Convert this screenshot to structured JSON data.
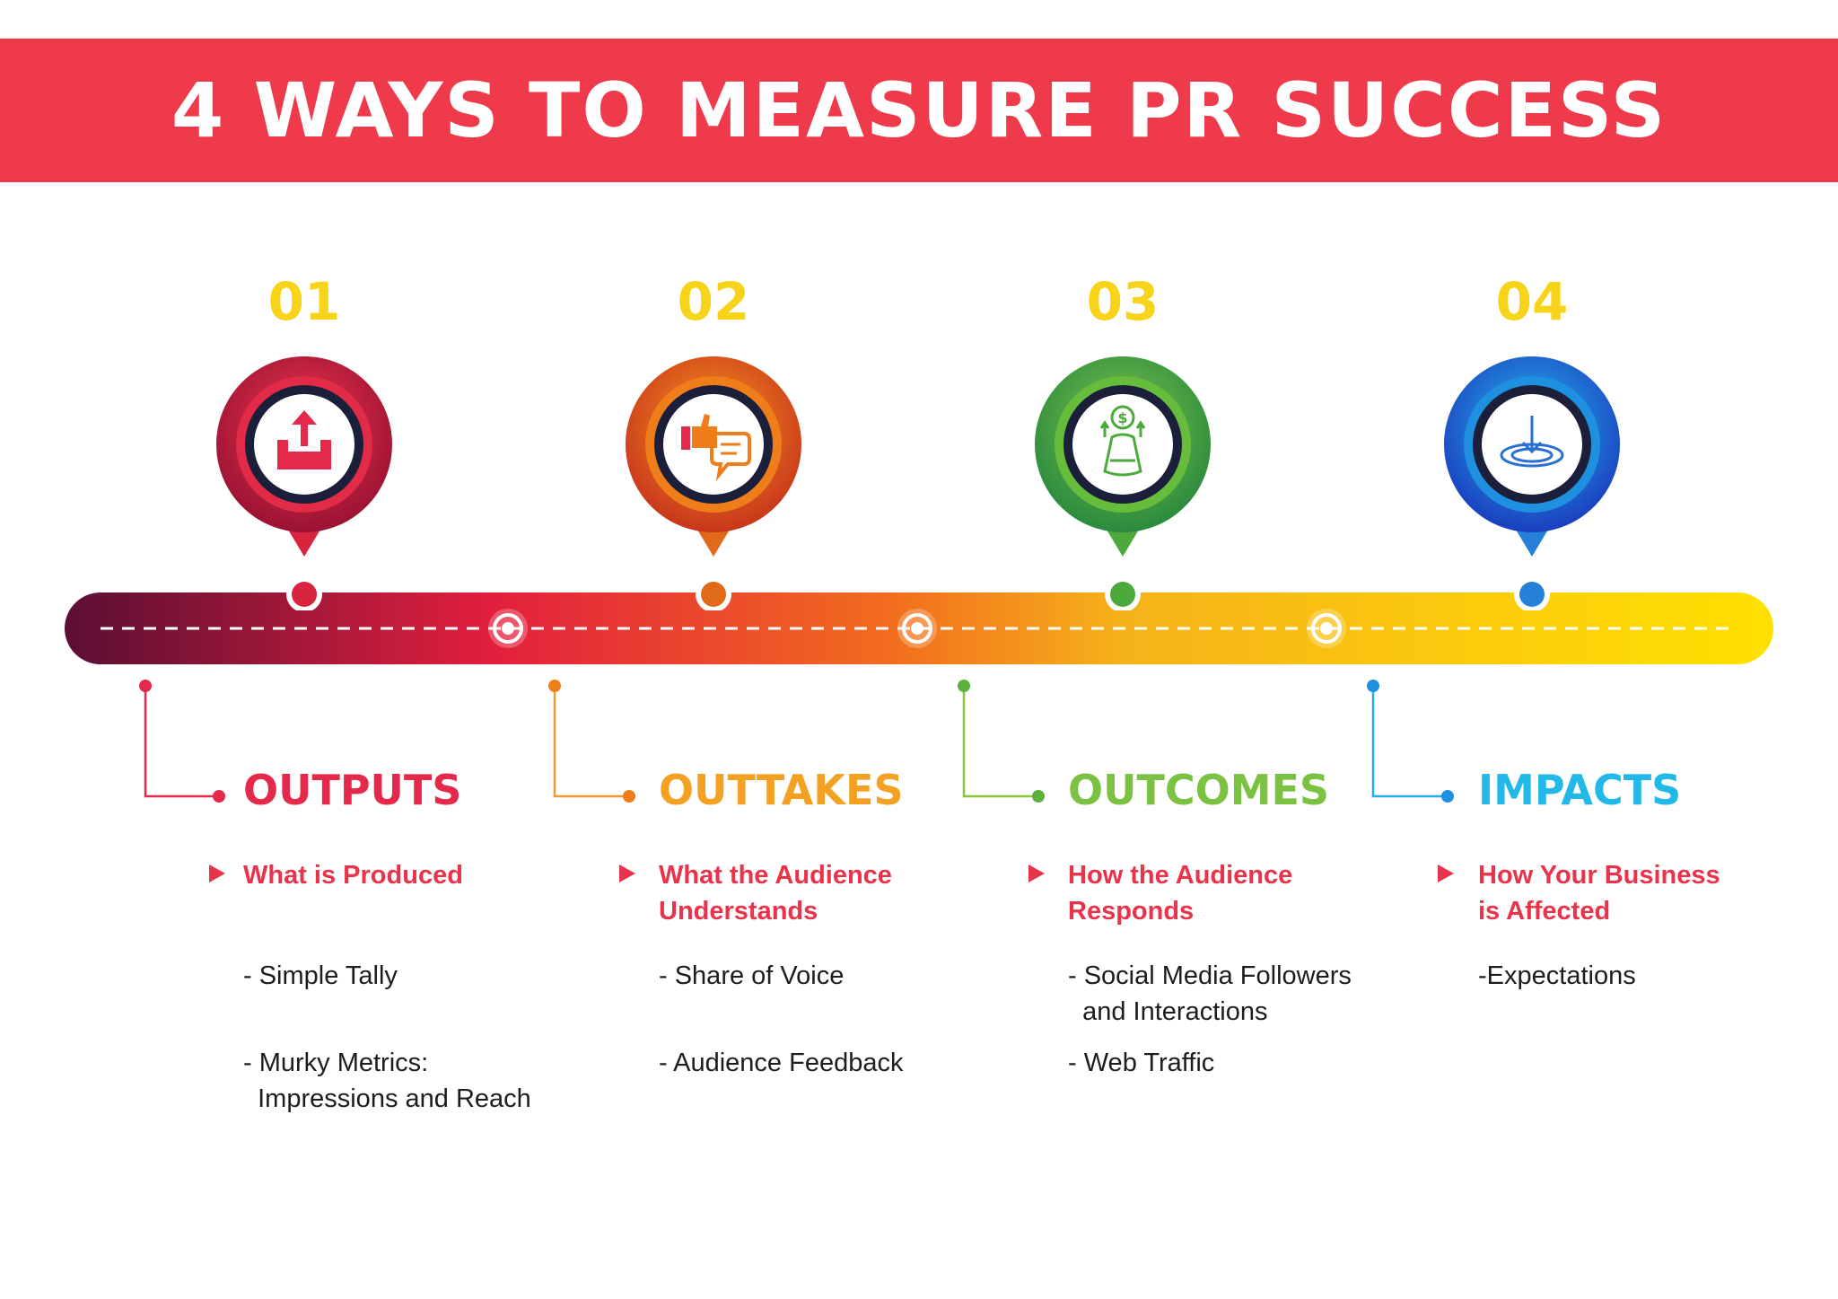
{
  "title": "4 WAYS TO MEASURE PR SUCCESS",
  "colors": {
    "banner": "#ef3a4c",
    "number": "#f7d31a",
    "subtitle": "#e8334a",
    "text": "#1d1d1d"
  },
  "steps": [
    {
      "number": "01",
      "icon": "inbox-upload-icon",
      "color": "#e4294a",
      "dark": "#8e1030",
      "category": "OUTPUTS",
      "subtitle": "What is Produced",
      "metrics": [
        "- Simple Tally",
        "- Murky Metrics:\n  Impressions and Reach"
      ]
    },
    {
      "number": "02",
      "icon": "thumbs-up-chat-icon",
      "color": "#ef7d1a",
      "dark": "#c4431a",
      "category": "OUTTAKES",
      "subtitle": "What the Audience\nUnderstands",
      "metrics": [
        "- Share of Voice",
        "- Audience Feedback"
      ]
    },
    {
      "number": "03",
      "icon": "money-bag-icon",
      "color": "#6bbf3b",
      "dark": "#2c8a3a",
      "category": "OUTCOMES",
      "subtitle": "How the Audience\nResponds",
      "metrics": [
        "- Social Media Followers\n  and Interactions",
        "- Web Traffic"
      ]
    },
    {
      "number": "04",
      "icon": "download-target-icon",
      "color": "#22aee6",
      "dark": "#1a4fc4",
      "category": "IMPACTS",
      "subtitle": "How Your Business\nis Affected",
      "metrics": [
        "-Expectations"
      ]
    }
  ]
}
